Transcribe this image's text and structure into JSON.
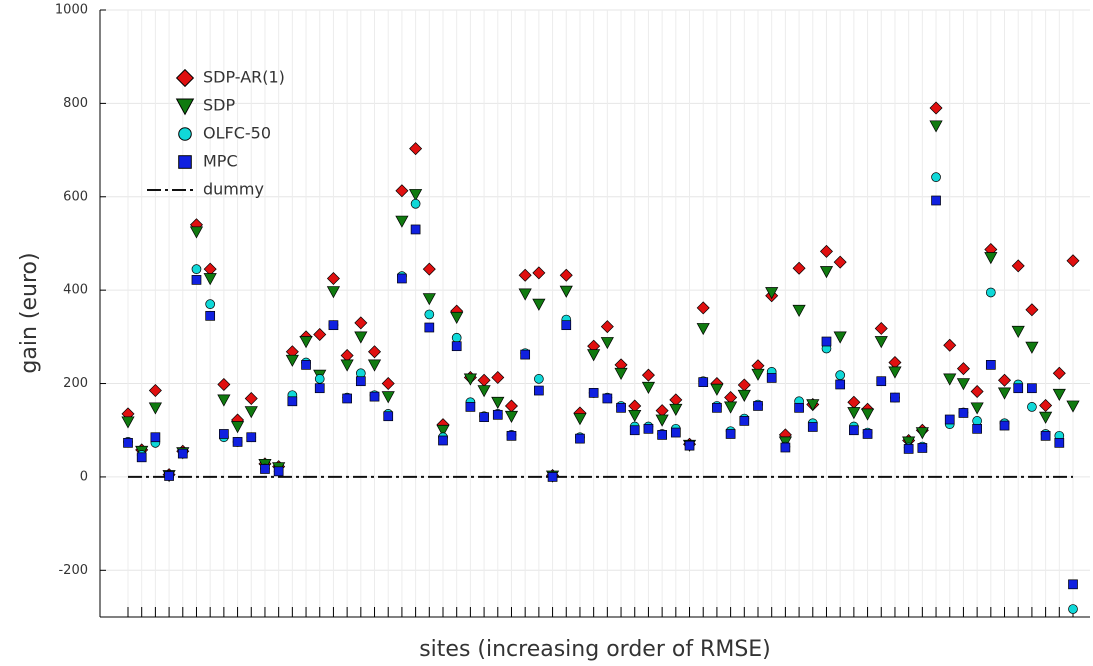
{
  "chart_data": {
    "type": "scatter",
    "xlabel": "sites (increasing order of RMSE)",
    "ylabel": "gain (euro)",
    "categories": [
      null,
      null,
      null,
      null,
      null,
      null,
      null,
      null,
      null,
      null,
      null,
      null,
      null,
      null,
      null,
      null,
      null,
      null,
      null,
      null,
      null,
      null,
      null,
      null,
      null,
      null,
      null,
      null,
      null,
      null,
      null,
      null,
      null,
      null,
      null,
      null,
      null,
      null,
      null,
      null,
      null,
      null,
      null,
      null,
      null,
      null,
      null,
      null,
      null,
      null,
      null,
      null,
      null,
      null,
      null,
      null,
      null,
      null,
      null,
      null,
      null,
      null,
      null,
      null,
      null,
      null,
      null,
      null,
      null,
      null
    ],
    "ylim": [
      -300,
      1000
    ],
    "yticks": [
      -200,
      0,
      200,
      400,
      600,
      800,
      1000
    ],
    "grid": true,
    "legend": "upper left",
    "series": [
      {
        "name": "SDP-AR(1)",
        "color": "#e01010",
        "marker": "diamond",
        "values": [
          135,
          58,
          185,
          5,
          55,
          540,
          445,
          198,
          122,
          168,
          28,
          22,
          268,
          300,
          305,
          425,
          260,
          330,
          268,
          200,
          613,
          703,
          445,
          112,
          355,
          213,
          207,
          213,
          152,
          432,
          437,
          3,
          432,
          137,
          280,
          322,
          240,
          152,
          218,
          142,
          165,
          70,
          362,
          200,
          170,
          197,
          238,
          388,
          90,
          447,
          155,
          483,
          460,
          160,
          145,
          318,
          245,
          78,
          100,
          790,
          282,
          232,
          183,
          487,
          207,
          452,
          358,
          153,
          222,
          463
        ]
      },
      {
        "name": "SDP",
        "color": "#107a10",
        "marker": "triangle",
        "values": [
          118,
          55,
          148,
          3,
          52,
          525,
          425,
          165,
          108,
          140,
          27,
          20,
          250,
          290,
          218,
          397,
          240,
          300,
          240,
          172,
          548,
          605,
          382,
          100,
          342,
          210,
          185,
          160,
          130,
          392,
          370,
          2,
          398,
          125,
          262,
          288,
          222,
          132,
          192,
          122,
          145,
          68,
          318,
          188,
          150,
          175,
          220,
          395,
          75,
          357,
          155,
          440,
          300,
          138,
          135,
          290,
          225,
          75,
          95,
          752,
          210,
          200,
          148,
          470,
          180,
          312,
          278,
          128,
          177,
          152
        ]
      },
      {
        "name": "OLFC-50",
        "color": "#10d8d8",
        "marker": "circle",
        "values": [
          75,
          47,
          73,
          3,
          50,
          445,
          370,
          85,
          75,
          85,
          18,
          12,
          175,
          245,
          210,
          325,
          170,
          222,
          175,
          135,
          430,
          585,
          348,
          85,
          298,
          160,
          130,
          135,
          90,
          265,
          210,
          1,
          337,
          85,
          180,
          170,
          152,
          108,
          108,
          92,
          103,
          68,
          205,
          152,
          98,
          125,
          155,
          225,
          65,
          162,
          115,
          275,
          218,
          108,
          95,
          205,
          170,
          63,
          65,
          642,
          113,
          138,
          120,
          395,
          115,
          198,
          150,
          92,
          88,
          -283
        ]
      },
      {
        "name": "MPC",
        "color": "#1020e0",
        "marker": "square",
        "values": [
          73,
          42,
          85,
          2,
          50,
          422,
          345,
          92,
          75,
          85,
          17,
          12,
          162,
          240,
          190,
          325,
          168,
          205,
          172,
          130,
          425,
          530,
          320,
          78,
          280,
          150,
          128,
          133,
          88,
          262,
          185,
          0,
          325,
          82,
          180,
          168,
          148,
          100,
          103,
          90,
          95,
          67,
          203,
          148,
          92,
          120,
          152,
          212,
          63,
          148,
          107,
          290,
          198,
          100,
          92,
          205,
          170,
          60,
          62,
          592,
          123,
          137,
          103,
          240,
          110,
          190,
          190,
          88,
          73,
          -230
        ]
      },
      {
        "name": "dummy",
        "color": "#111111",
        "marker": "dashdot",
        "values": [
          0,
          0,
          0,
          0,
          0,
          0,
          0,
          0,
          0,
          0,
          0,
          0,
          0,
          0,
          0,
          0,
          0,
          0,
          0,
          0,
          0,
          0,
          0,
          0,
          0,
          0,
          0,
          0,
          0,
          0,
          0,
          0,
          0,
          0,
          0,
          0,
          0,
          0,
          0,
          0,
          0,
          0,
          0,
          0,
          0,
          0,
          0,
          0,
          0,
          0,
          0,
          0,
          0,
          0,
          0,
          0,
          0,
          0,
          0,
          0,
          0,
          0,
          0,
          0,
          0,
          0,
          0,
          0,
          0,
          0
        ]
      }
    ]
  }
}
